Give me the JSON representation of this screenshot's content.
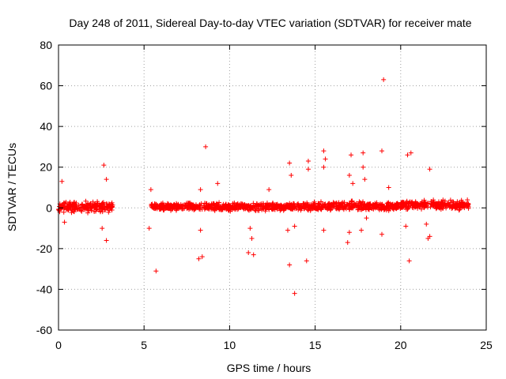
{
  "chart_data": {
    "type": "scatter",
    "title": "Day 248 of 2011, Sidereal Day-to-day VTEC variation (SDTVAR) for receiver mate",
    "xlabel": "GPS time / hours",
    "ylabel": "SDTVAR / TECUs",
    "xlim": [
      0,
      25
    ],
    "ylim": [
      -60,
      80
    ],
    "xticks": [
      0,
      5,
      10,
      15,
      20,
      25
    ],
    "yticks": [
      -60,
      -40,
      -20,
      0,
      20,
      40,
      60,
      80
    ],
    "grid": true,
    "marker": "+",
    "series": [
      {
        "name": "SDTVAR",
        "color": "#ff0000",
        "dense_segments": [
          {
            "x_start": 0.0,
            "x_end": 3.2,
            "center": 0.5,
            "spread": 3.5
          },
          {
            "x_start": 5.4,
            "x_end": 14.0,
            "center": 0.5,
            "spread": 2.5
          },
          {
            "x_start": 14.0,
            "x_end": 20.0,
            "center": 0.8,
            "spread": 3.0
          },
          {
            "x_start": 20.0,
            "x_end": 24.0,
            "center": 1.5,
            "spread": 3.0
          }
        ],
        "spikes": [
          {
            "x": 0.2,
            "y": 13
          },
          {
            "x": 0.35,
            "y": -7
          },
          {
            "x": 2.65,
            "y": 21
          },
          {
            "x": 2.8,
            "y": 14
          },
          {
            "x": 2.8,
            "y": -16
          },
          {
            "x": 2.55,
            "y": -10
          },
          {
            "x": 5.4,
            "y": 9
          },
          {
            "x": 5.3,
            "y": -10
          },
          {
            "x": 5.7,
            "y": -31
          },
          {
            "x": 8.2,
            "y": -25
          },
          {
            "x": 8.4,
            "y": -24
          },
          {
            "x": 8.6,
            "y": 30
          },
          {
            "x": 8.3,
            "y": 9
          },
          {
            "x": 8.3,
            "y": -11
          },
          {
            "x": 9.3,
            "y": 12
          },
          {
            "x": 11.1,
            "y": -22
          },
          {
            "x": 11.4,
            "y": -23
          },
          {
            "x": 11.3,
            "y": -15
          },
          {
            "x": 11.2,
            "y": -10
          },
          {
            "x": 12.3,
            "y": 9
          },
          {
            "x": 13.5,
            "y": 22
          },
          {
            "x": 13.6,
            "y": 16
          },
          {
            "x": 13.4,
            "y": -11
          },
          {
            "x": 13.5,
            "y": -28
          },
          {
            "x": 13.8,
            "y": -42
          },
          {
            "x": 13.8,
            "y": -9
          },
          {
            "x": 14.5,
            "y": -26
          },
          {
            "x": 14.6,
            "y": 23
          },
          {
            "x": 14.6,
            "y": 19
          },
          {
            "x": 15.5,
            "y": 28
          },
          {
            "x": 15.6,
            "y": 24
          },
          {
            "x": 15.5,
            "y": 20
          },
          {
            "x": 15.5,
            "y": -11
          },
          {
            "x": 16.9,
            "y": -17
          },
          {
            "x": 17.0,
            "y": 16
          },
          {
            "x": 17.1,
            "y": 26
          },
          {
            "x": 17.2,
            "y": 12
          },
          {
            "x": 17.0,
            "y": -12
          },
          {
            "x": 17.8,
            "y": 27
          },
          {
            "x": 17.8,
            "y": 20
          },
          {
            "x": 17.9,
            "y": 14
          },
          {
            "x": 17.7,
            "y": -11
          },
          {
            "x": 18.0,
            "y": -5
          },
          {
            "x": 18.9,
            "y": 28
          },
          {
            "x": 19.0,
            "y": 63
          },
          {
            "x": 18.9,
            "y": -13
          },
          {
            "x": 19.3,
            "y": 10
          },
          {
            "x": 20.4,
            "y": 26
          },
          {
            "x": 20.6,
            "y": 27
          },
          {
            "x": 20.5,
            "y": -26
          },
          {
            "x": 20.3,
            "y": -9
          },
          {
            "x": 21.7,
            "y": 19
          },
          {
            "x": 21.6,
            "y": -15
          },
          {
            "x": 21.7,
            "y": -14
          },
          {
            "x": 21.5,
            "y": -8
          }
        ]
      }
    ]
  }
}
